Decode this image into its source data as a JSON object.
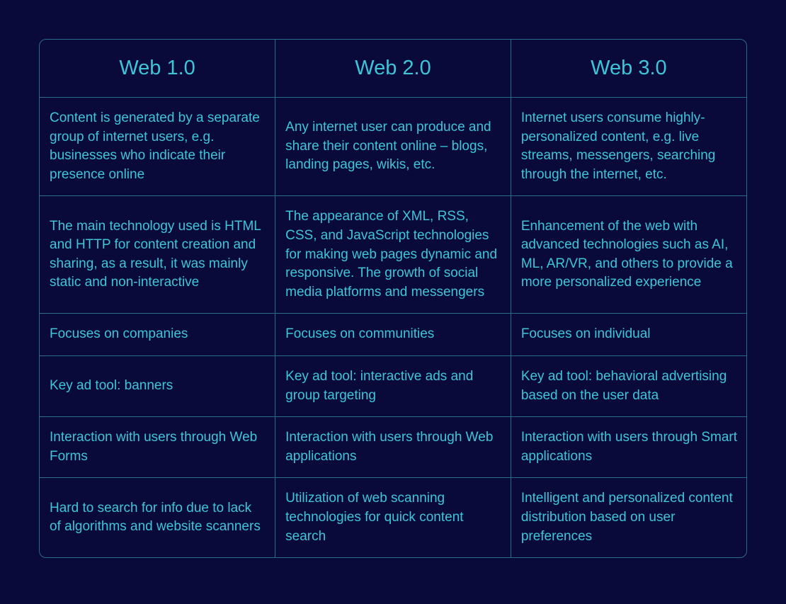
{
  "table": {
    "type": "table",
    "background_color": "#0a0a3a",
    "border_color": "#2a6a8a",
    "text_color": "#3ec5d8",
    "header_fontsize": 29,
    "body_fontsize": 19,
    "border_radius": 10,
    "columns": [
      "Web 1.0",
      "Web 2.0",
      "Web 3.0"
    ],
    "rows": [
      [
        "Content is generated by a separate group of internet users, e.g. businesses who indicate their presence online",
        "Any internet user can produce and share their content online – blogs, landing pages, wikis, etc.",
        "Internet users consume highly-personalized content, e.g. live streams, messengers, searching through the internet, etc."
      ],
      [
        "The main technology used is HTML and HTTP for content creation and sharing, as a result, it was mainly static and non-interactive",
        "The appearance of XML, RSS, CSS, and JavaScript technologies for making web pages dynamic and responsive. The growth of social media platforms and messengers",
        "Enhancement of the web with advanced technologies such as AI, ML, AR/VR, and others to provide a more personalized experience"
      ],
      [
        "Focuses on companies",
        "Focuses on communities",
        "Focuses on individual"
      ],
      [
        "Key ad tool: banners",
        "Key ad tool: interactive ads and group targeting",
        "Key ad tool: behavioral advertising based on the user data"
      ],
      [
        "Interaction with users through Web Forms",
        "Interaction with users through Web applications",
        "Interaction with users through Smart applications"
      ],
      [
        "Hard to search for info due to lack of algorithms and website scanners",
        "Utilization of web scanning technologies for quick content search",
        "Intelligent and personalized content distribution based on user preferences"
      ]
    ]
  }
}
